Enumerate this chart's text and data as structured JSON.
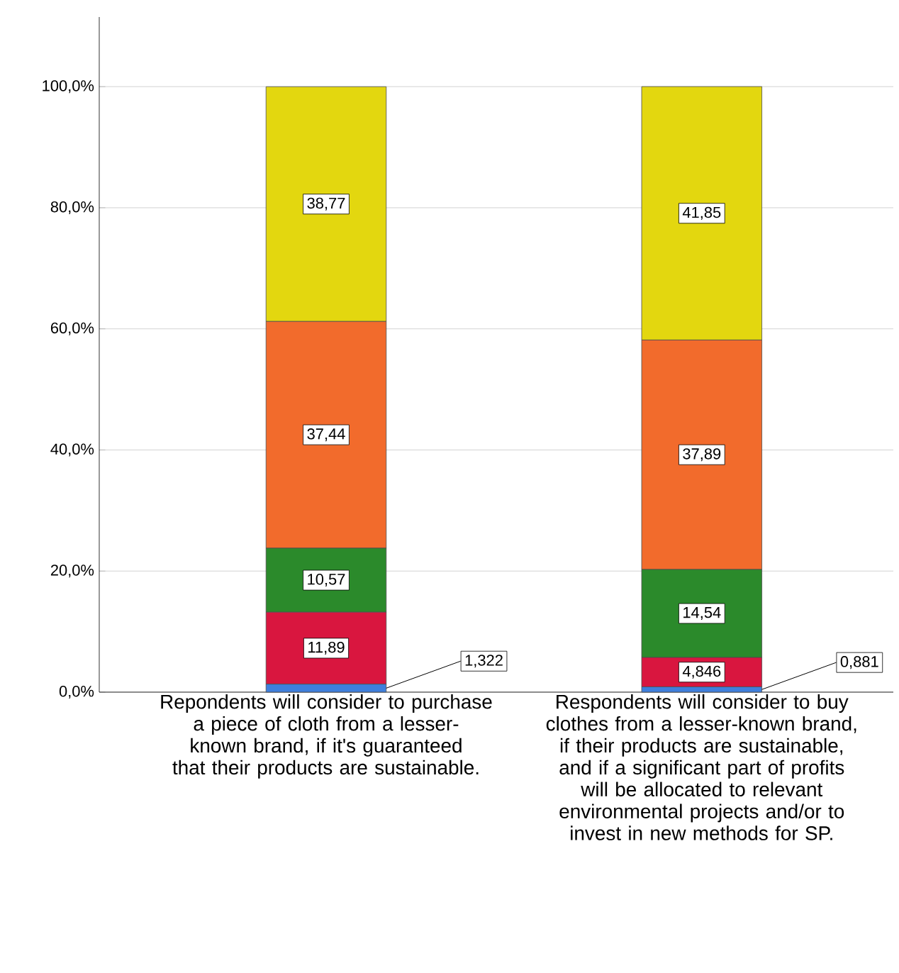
{
  "chart_data": {
    "type": "bar",
    "stacked": true,
    "grid": "y",
    "categories": [
      "Repondents will consider to purchase a piece of cloth from a lesser-known brand, if it's guaranteed that their products are sustainable.",
      "Respondents will consider to buy clothes from a lesser-known brand, if their products are sustainable, and if a significant part of profits will be allocated to relevant environmental projects and/or to invest in new methods for SP."
    ],
    "series": [
      {
        "color": "#3f7fdc",
        "values": [
          1.322,
          0.881
        ],
        "value_labels": [
          "1,322",
          "0,881"
        ]
      },
      {
        "color": "#d9163f",
        "values": [
          11.89,
          4.846
        ],
        "value_labels": [
          "11,89",
          "4,846"
        ]
      },
      {
        "color": "#2b8a2b",
        "values": [
          10.57,
          14.54
        ],
        "value_labels": [
          "10,57",
          "14,54"
        ]
      },
      {
        "color": "#f26b2c",
        "values": [
          37.44,
          37.89
        ],
        "value_labels": [
          "37,44",
          "37,89"
        ]
      },
      {
        "color": "#e3d70f",
        "values": [
          38.77,
          41.85
        ],
        "value_labels": [
          "38,77",
          "41,85"
        ]
      }
    ],
    "ylim": [
      0,
      111.5
    ],
    "yticks": [
      {
        "value": 0,
        "label": "0,0%"
      },
      {
        "value": 20,
        "label": "20,0%"
      },
      {
        "value": 40,
        "label": "40,0%"
      },
      {
        "value": 60,
        "label": "60,0%"
      },
      {
        "value": 80,
        "label": "80,0%"
      },
      {
        "value": 100,
        "label": "100,0%"
      }
    ]
  }
}
